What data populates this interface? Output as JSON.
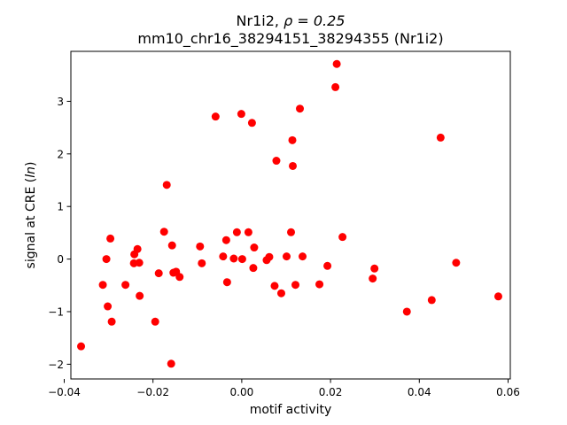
{
  "chart_data": {
    "type": "scatter",
    "title_line1_prefix": "Nr1i2, ",
    "title_line1_math": "ρ = 0.25",
    "title_line2": "mm10_chr16_38294151_38294355 (Nr1i2)",
    "xlabel": "motif activity",
    "ylabel_prefix": "signal at CRE (",
    "ylabel_math": "ln",
    "ylabel_suffix": ")",
    "xlim": [
      -0.0385,
      0.0605
    ],
    "ylim": [
      -2.28,
      3.95
    ],
    "x_ticks": [
      -0.04,
      -0.02,
      0.0,
      0.02,
      0.04,
      0.06
    ],
    "x_tick_labels": [
      "−0.04",
      "−0.02",
      "0.00",
      "0.02",
      "0.04",
      "0.06"
    ],
    "y_ticks": [
      -2,
      -1,
      0,
      1,
      2,
      3
    ],
    "y_tick_labels": [
      "−2",
      "−1",
      "0",
      "1",
      "2",
      "3"
    ],
    "grid": false,
    "marker_color": "#ff0000",
    "points": [
      {
        "x": -0.0362,
        "y": -1.66
      },
      {
        "x": -0.0313,
        "y": -0.49
      },
      {
        "x": -0.0305,
        "y": 0.0
      },
      {
        "x": -0.0302,
        "y": -0.9
      },
      {
        "x": -0.0296,
        "y": 0.39
      },
      {
        "x": -0.0293,
        "y": -1.19
      },
      {
        "x": -0.0262,
        "y": -0.49
      },
      {
        "x": -0.0243,
        "y": -0.08
      },
      {
        "x": -0.0242,
        "y": 0.09
      },
      {
        "x": -0.0235,
        "y": 0.19
      },
      {
        "x": -0.0231,
        "y": -0.07
      },
      {
        "x": -0.023,
        "y": -0.7
      },
      {
        "x": -0.0195,
        "y": -1.19
      },
      {
        "x": -0.0187,
        "y": -0.27
      },
      {
        "x": -0.0175,
        "y": 0.52
      },
      {
        "x": -0.0169,
        "y": 1.41
      },
      {
        "x": -0.0159,
        "y": -1.99
      },
      {
        "x": -0.0157,
        "y": 0.26
      },
      {
        "x": -0.0154,
        "y": -0.26
      },
      {
        "x": -0.0148,
        "y": -0.24
      },
      {
        "x": -0.014,
        "y": -0.34
      },
      {
        "x": -0.0094,
        "y": 0.24
      },
      {
        "x": -0.009,
        "y": -0.08
      },
      {
        "x": -0.0059,
        "y": 2.71
      },
      {
        "x": -0.0042,
        "y": 0.05
      },
      {
        "x": -0.0035,
        "y": 0.36
      },
      {
        "x": -0.0033,
        "y": -0.44
      },
      {
        "x": -0.0018,
        "y": 0.01
      },
      {
        "x": -0.0011,
        "y": 0.51
      },
      {
        "x": -0.0001,
        "y": 2.76
      },
      {
        "x": 0.0001,
        "y": 0.0
      },
      {
        "x": 0.0015,
        "y": 0.51
      },
      {
        "x": 0.0023,
        "y": 2.59
      },
      {
        "x": 0.0026,
        "y": -0.17
      },
      {
        "x": 0.0028,
        "y": 0.22
      },
      {
        "x": 0.0056,
        "y": -0.02
      },
      {
        "x": 0.0062,
        "y": 0.04
      },
      {
        "x": 0.0074,
        "y": -0.51
      },
      {
        "x": 0.0078,
        "y": 1.87
      },
      {
        "x": 0.0089,
        "y": -0.65
      },
      {
        "x": 0.0101,
        "y": 0.05
      },
      {
        "x": 0.0111,
        "y": 0.51
      },
      {
        "x": 0.0114,
        "y": 2.26
      },
      {
        "x": 0.0115,
        "y": 1.77
      },
      {
        "x": 0.0121,
        "y": -0.49
      },
      {
        "x": 0.0131,
        "y": 2.86
      },
      {
        "x": 0.0137,
        "y": 0.05
      },
      {
        "x": 0.0175,
        "y": -0.48
      },
      {
        "x": 0.0193,
        "y": -0.13
      },
      {
        "x": 0.0211,
        "y": 3.27
      },
      {
        "x": 0.0214,
        "y": 3.71
      },
      {
        "x": 0.0227,
        "y": 0.42
      },
      {
        "x": 0.0295,
        "y": -0.37
      },
      {
        "x": 0.0299,
        "y": -0.18
      },
      {
        "x": 0.0372,
        "y": -1.0
      },
      {
        "x": 0.0428,
        "y": -0.78
      },
      {
        "x": 0.0448,
        "y": 2.31
      },
      {
        "x": 0.0483,
        "y": -0.07
      },
      {
        "x": 0.0578,
        "y": -0.71
      }
    ]
  }
}
